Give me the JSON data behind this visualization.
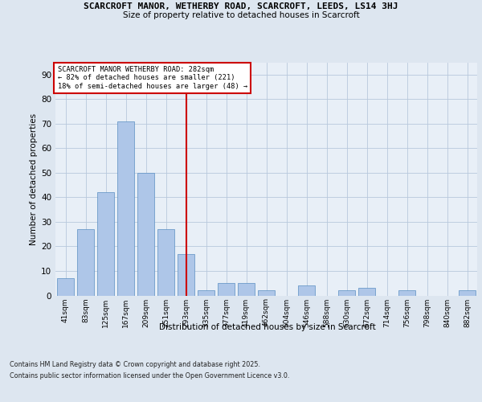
{
  "title1": "SCARCROFT MANOR, WETHERBY ROAD, SCARCROFT, LEEDS, LS14 3HJ",
  "title2": "Size of property relative to detached houses in Scarcroft",
  "xlabel": "Distribution of detached houses by size in Scarcroft",
  "ylabel": "Number of detached properties",
  "categories": [
    "41sqm",
    "83sqm",
    "125sqm",
    "167sqm",
    "209sqm",
    "251sqm",
    "293sqm",
    "335sqm",
    "377sqm",
    "419sqm",
    "462sqm",
    "504sqm",
    "546sqm",
    "588sqm",
    "630sqm",
    "672sqm",
    "714sqm",
    "756sqm",
    "798sqm",
    "840sqm",
    "882sqm"
  ],
  "values": [
    7,
    27,
    42,
    71,
    50,
    27,
    17,
    2,
    5,
    5,
    2,
    0,
    4,
    0,
    2,
    3,
    0,
    2,
    0,
    0,
    2
  ],
  "bar_color": "#aec6e8",
  "bar_edge_color": "#5a8fc2",
  "vline_x": 6.0,
  "vline_color": "#cc0000",
  "annotation_line1": "SCARCROFT MANOR WETHERBY ROAD: 282sqm",
  "annotation_line2": "← 82% of detached houses are smaller (221)",
  "annotation_line3": "18% of semi-detached houses are larger (48) →",
  "annotation_box_color": "#cc0000",
  "ylim": [
    0,
    95
  ],
  "yticks": [
    0,
    10,
    20,
    30,
    40,
    50,
    60,
    70,
    80,
    90
  ],
  "bg_color": "#dde6f0",
  "plot_bg_color": "#e8eff7",
  "footer1": "Contains HM Land Registry data © Crown copyright and database right 2025.",
  "footer2": "Contains public sector information licensed under the Open Government Licence v3.0."
}
